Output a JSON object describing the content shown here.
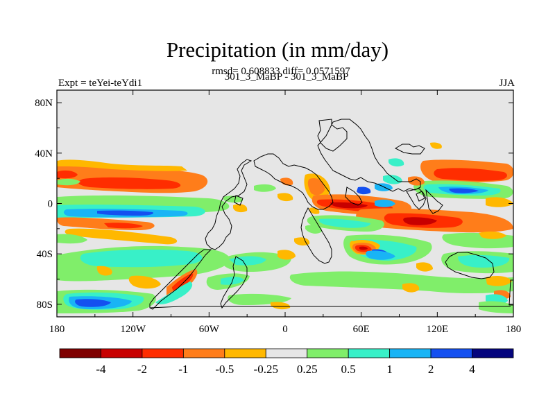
{
  "figure": {
    "title": "Precipitation (in mm/day)",
    "stats": "rmsd= 0.608833 diff= 0.0571597",
    "case_names": "301_3_MaBP - 301_3_MaBP",
    "experiment": "Expt = teYei-teYdi1",
    "season": "JJA"
  },
  "map": {
    "lat_labels": [
      "80N",
      "40N",
      "0",
      "40S",
      "80S"
    ],
    "lat_values": [
      80,
      40,
      0,
      -40,
      -80
    ],
    "lon_labels": [
      "180",
      "120W",
      "60W",
      "0",
      "60E",
      "120E",
      "180"
    ],
    "lon_values": [
      -180,
      -120,
      -60,
      0,
      60,
      120,
      180
    ],
    "lat_range": [
      -90,
      90
    ],
    "lon_range": [
      -180,
      180
    ],
    "background_color": "#e6e6e6"
  },
  "colorbar": {
    "colors": [
      "#7f0000",
      "#c80000",
      "#ff2d00",
      "#ff7d1a",
      "#ffb800",
      "#e6e6e6",
      "#80ee6a",
      "#38f0c8",
      "#19b4f5",
      "#1450f0",
      "#05057e"
    ],
    "labels": [
      "-4",
      "-2",
      "-1",
      "-0.5",
      "-0.25",
      "0.25",
      "0.5",
      "1",
      "2",
      "4"
    ]
  },
  "chart_data": {
    "type": "heatmap",
    "title": "Precipitation (in mm/day)",
    "units": "mm/day",
    "levels": [
      -4,
      -2,
      -1,
      -0.5,
      -0.25,
      0.25,
      0.5,
      1,
      2,
      4
    ],
    "regions": [
      {
        "lon": [
          -180,
          -110
        ],
        "lat": [
          22,
          34
        ],
        "value": -0.5
      },
      {
        "lon": [
          -150,
          -110
        ],
        "lat": [
          12,
          22
        ],
        "value": -2
      },
      {
        "lon": [
          -180,
          -160
        ],
        "lat": [
          12,
          20
        ],
        "value": 0.5
      },
      {
        "lon": [
          -180,
          -40
        ],
        "lat": [
          -10,
          -2
        ],
        "value": 0.5
      },
      {
        "lon": [
          -170,
          -60
        ],
        "lat": [
          -8,
          -4
        ],
        "value": 2
      },
      {
        "lon": [
          -180,
          -100
        ],
        "lat": [
          -20,
          -12
        ],
        "value": -0.5
      },
      {
        "lon": [
          -180,
          -110
        ],
        "lat": [
          -84,
          -70
        ],
        "value": 0.5
      },
      {
        "lon": [
          -175,
          -140
        ],
        "lat": [
          -82,
          -76
        ],
        "value": 2
      },
      {
        "lon": [
          -85,
          -60
        ],
        "lat": [
          -72,
          -55
        ],
        "value": -1
      },
      {
        "lon": [
          -80,
          0
        ],
        "lat": [
          -60,
          -46
        ],
        "value": 0.5
      },
      {
        "lon": [
          30,
          80
        ],
        "lat": [
          -6,
          4
        ],
        "value": -1
      },
      {
        "lon": [
          70,
          130
        ],
        "lat": [
          -18,
          -10
        ],
        "value": -2
      },
      {
        "lon": [
          110,
          180
        ],
        "lat": [
          12,
          24
        ],
        "value": -0.5
      },
      {
        "lon": [
          130,
          180
        ],
        "lat": [
          -20,
          -10
        ],
        "value": 0.5
      },
      {
        "lon": [
          55,
          75
        ],
        "lat": [
          -40,
          -30
        ],
        "value": -2
      },
      {
        "lon": [
          0,
          140
        ],
        "lat": [
          -62,
          -54
        ],
        "value": 0.5
      }
    ]
  }
}
